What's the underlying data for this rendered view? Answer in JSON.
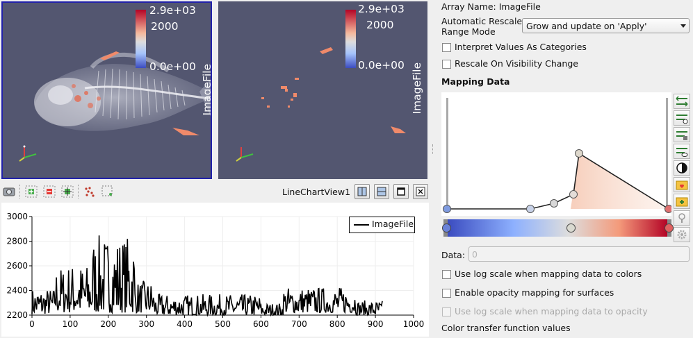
{
  "views": {
    "left": {
      "colorbar": {
        "max": "2.9e+03",
        "mid": "2000",
        "min": "0.0e+00",
        "title": "ImageFile"
      }
    },
    "right": {
      "colorbar": {
        "max": "2.9e+03",
        "mid": "2000",
        "min": "0.0e+00",
        "title": "ImageFile"
      }
    }
  },
  "chart_toolbar": {
    "title": "LineChartView1",
    "icons": [
      "camera-icon",
      "zoom-in-icon",
      "zoom-out-icon",
      "zoom-fit-icon",
      "select-points-icon",
      "select-box-icon"
    ],
    "window_buttons": [
      "split-horizontal-icon",
      "split-vertical-icon",
      "maximize-icon",
      "close-icon"
    ]
  },
  "chart_data": {
    "type": "line",
    "series": [
      {
        "name": "ImageFile",
        "color": "#000000"
      }
    ],
    "x_ticks": [
      "0",
      "100",
      "200",
      "300",
      "400",
      "500",
      "600",
      "700",
      "800",
      "900",
      "1000"
    ],
    "y_ticks": [
      "2200",
      "2400",
      "2600",
      "2800",
      "3000"
    ],
    "xlim": [
      0,
      1000
    ],
    "ylim": [
      2200,
      3000
    ],
    "grid": true,
    "legend": "top-right",
    "segments": [
      {
        "x0": 0,
        "x1": 60,
        "min": 2210,
        "max": 2420
      },
      {
        "x0": 60,
        "x1": 90,
        "min": 2220,
        "max": 2600
      },
      {
        "x0": 90,
        "x1": 160,
        "min": 2220,
        "max": 2620
      },
      {
        "x0": 160,
        "x1": 270,
        "min": 2220,
        "max": 2850
      },
      {
        "x0": 270,
        "x1": 320,
        "min": 2220,
        "max": 2480
      },
      {
        "x0": 320,
        "x1": 600,
        "min": 2200,
        "max": 2370
      },
      {
        "x0": 600,
        "x1": 660,
        "min": 2200,
        "max": 2300
      },
      {
        "x0": 660,
        "x1": 850,
        "min": 2220,
        "max": 2430
      },
      {
        "x0": 850,
        "x1": 920,
        "min": 2200,
        "max": 2320
      }
    ]
  },
  "properties": {
    "array_name": "Array Name: ImageFile",
    "rescale_label_1": "Automatic Rescale",
    "rescale_label_2": "Range Mode",
    "rescale_value": "Grow and update on 'Apply'",
    "interpret_label": "Interpret Values As Categories",
    "rescale_visibility_label": "Rescale On Visibility Change",
    "mapping_header": "Mapping Data",
    "data_label": "Data:",
    "data_placeholder": "0",
    "log_colors_label": "Use log scale when mapping data to colors",
    "opacity_mapping_label": "Enable opacity mapping for surfaces",
    "log_opacity_label": "Use log scale when mapping data to opacity",
    "ctf_label": "Color transfer function values",
    "colors": {
      "accent_low": "#3b4cc0",
      "accent_high": "#b40426"
    }
  }
}
